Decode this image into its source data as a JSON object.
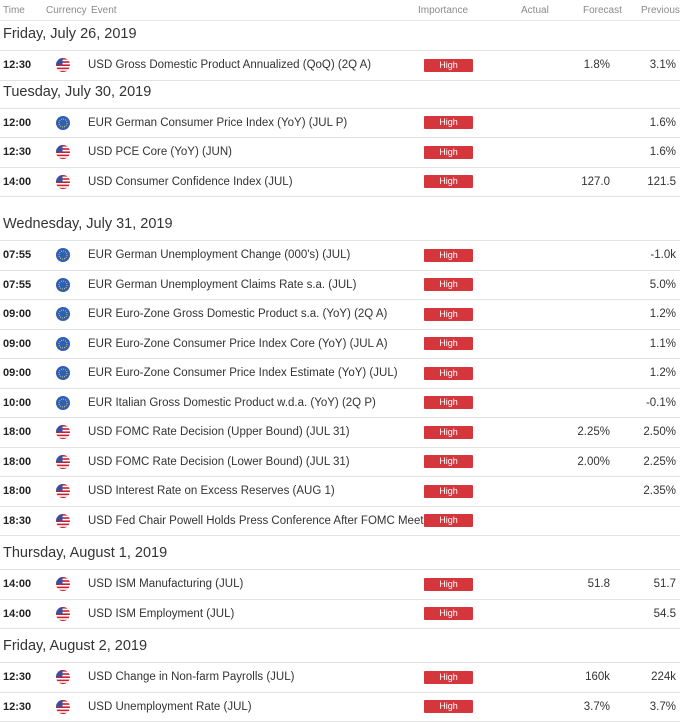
{
  "header": {
    "time": "Time",
    "currency": "Currency",
    "event": "Event",
    "importance": "Importance",
    "actual": "Actual",
    "forecast": "Forecast",
    "previous": "Previous"
  },
  "flags": {
    "us": "us-flag-icon",
    "eu": "eu-flag-icon"
  },
  "colors": {
    "high_badge": "#d4363c",
    "divider": "#e3e3e3"
  },
  "groups": [
    {
      "date": "Friday, July 26, 2019",
      "events": [
        {
          "time": "12:30",
          "flag": "us",
          "event": "USD Gross Domestic Product Annualized (QoQ) (2Q A)",
          "importance": "High",
          "actual": "",
          "forecast": "1.8%",
          "previous": "3.1%"
        }
      ]
    },
    {
      "date": "Tuesday, July 30, 2019",
      "events": [
        {
          "time": "12:00",
          "flag": "eu",
          "event": "EUR German Consumer Price Index (YoY) (JUL P)",
          "importance": "High",
          "actual": "",
          "forecast": "",
          "previous": "1.6%"
        },
        {
          "time": "12:30",
          "flag": "us",
          "event": "USD PCE Core (YoY) (JUN)",
          "importance": "High",
          "actual": "",
          "forecast": "",
          "previous": "1.6%"
        },
        {
          "time": "14:00",
          "flag": "us",
          "event": "USD Consumer Confidence Index (JUL)",
          "importance": "High",
          "actual": "",
          "forecast": "127.0",
          "previous": "121.5"
        }
      ]
    },
    {
      "date": "Wednesday, July 31, 2019",
      "events": [
        {
          "time": "07:55",
          "flag": "eu",
          "event": "EUR German Unemployment Change (000's) (JUL)",
          "importance": "High",
          "actual": "",
          "forecast": "",
          "previous": "-1.0k"
        },
        {
          "time": "07:55",
          "flag": "eu",
          "event": "EUR German Unemployment Claims Rate s.a. (JUL)",
          "importance": "High",
          "actual": "",
          "forecast": "",
          "previous": "5.0%"
        },
        {
          "time": "09:00",
          "flag": "eu",
          "event": "EUR Euro-Zone Gross Domestic Product s.a. (YoY) (2Q A)",
          "importance": "High",
          "actual": "",
          "forecast": "",
          "previous": "1.2%"
        },
        {
          "time": "09:00",
          "flag": "eu",
          "event": "EUR Euro-Zone Consumer Price Index Core (YoY) (JUL A)",
          "importance": "High",
          "actual": "",
          "forecast": "",
          "previous": "1.1%"
        },
        {
          "time": "09:00",
          "flag": "eu",
          "event": "EUR Euro-Zone Consumer Price Index Estimate (YoY) (JUL)",
          "importance": "High",
          "actual": "",
          "forecast": "",
          "previous": "1.2%"
        },
        {
          "time": "10:00",
          "flag": "eu",
          "event": "EUR Italian Gross Domestic Product w.d.a. (YoY) (2Q P)",
          "importance": "High",
          "actual": "",
          "forecast": "",
          "previous": "-0.1%"
        },
        {
          "time": "18:00",
          "flag": "us",
          "event": "USD FOMC Rate Decision (Upper Bound) (JUL 31)",
          "importance": "High",
          "actual": "",
          "forecast": "2.25%",
          "previous": "2.50%"
        },
        {
          "time": "18:00",
          "flag": "us",
          "event": "USD FOMC Rate Decision (Lower Bound) (JUL 31)",
          "importance": "High",
          "actual": "",
          "forecast": "2.00%",
          "previous": "2.25%"
        },
        {
          "time": "18:00",
          "flag": "us",
          "event": "USD Interest Rate on Excess Reserves (AUG 1)",
          "importance": "High",
          "actual": "",
          "forecast": "",
          "previous": "2.35%"
        },
        {
          "time": "18:30",
          "flag": "us",
          "event": "USD Fed Chair Powell Holds Press Conference After FOMC Meeting",
          "importance": "High",
          "actual": "",
          "forecast": "",
          "previous": ""
        }
      ]
    },
    {
      "date": "Thursday, August 1, 2019",
      "events": [
        {
          "time": "14:00",
          "flag": "us",
          "event": "USD ISM Manufacturing (JUL)",
          "importance": "High",
          "actual": "",
          "forecast": "51.8",
          "previous": "51.7"
        },
        {
          "time": "14:00",
          "flag": "us",
          "event": "USD ISM Employment (JUL)",
          "importance": "High",
          "actual": "",
          "forecast": "",
          "previous": "54.5"
        }
      ]
    },
    {
      "date": "Friday, August 2, 2019",
      "events": [
        {
          "time": "12:30",
          "flag": "us",
          "event": "USD Change in Non-farm Payrolls (JUL)",
          "importance": "High",
          "actual": "",
          "forecast": "160k",
          "previous": "224k"
        },
        {
          "time": "12:30",
          "flag": "us",
          "event": "USD Unemployment Rate (JUL)",
          "importance": "High",
          "actual": "",
          "forecast": "3.7%",
          "previous": "3.7%"
        }
      ]
    }
  ]
}
